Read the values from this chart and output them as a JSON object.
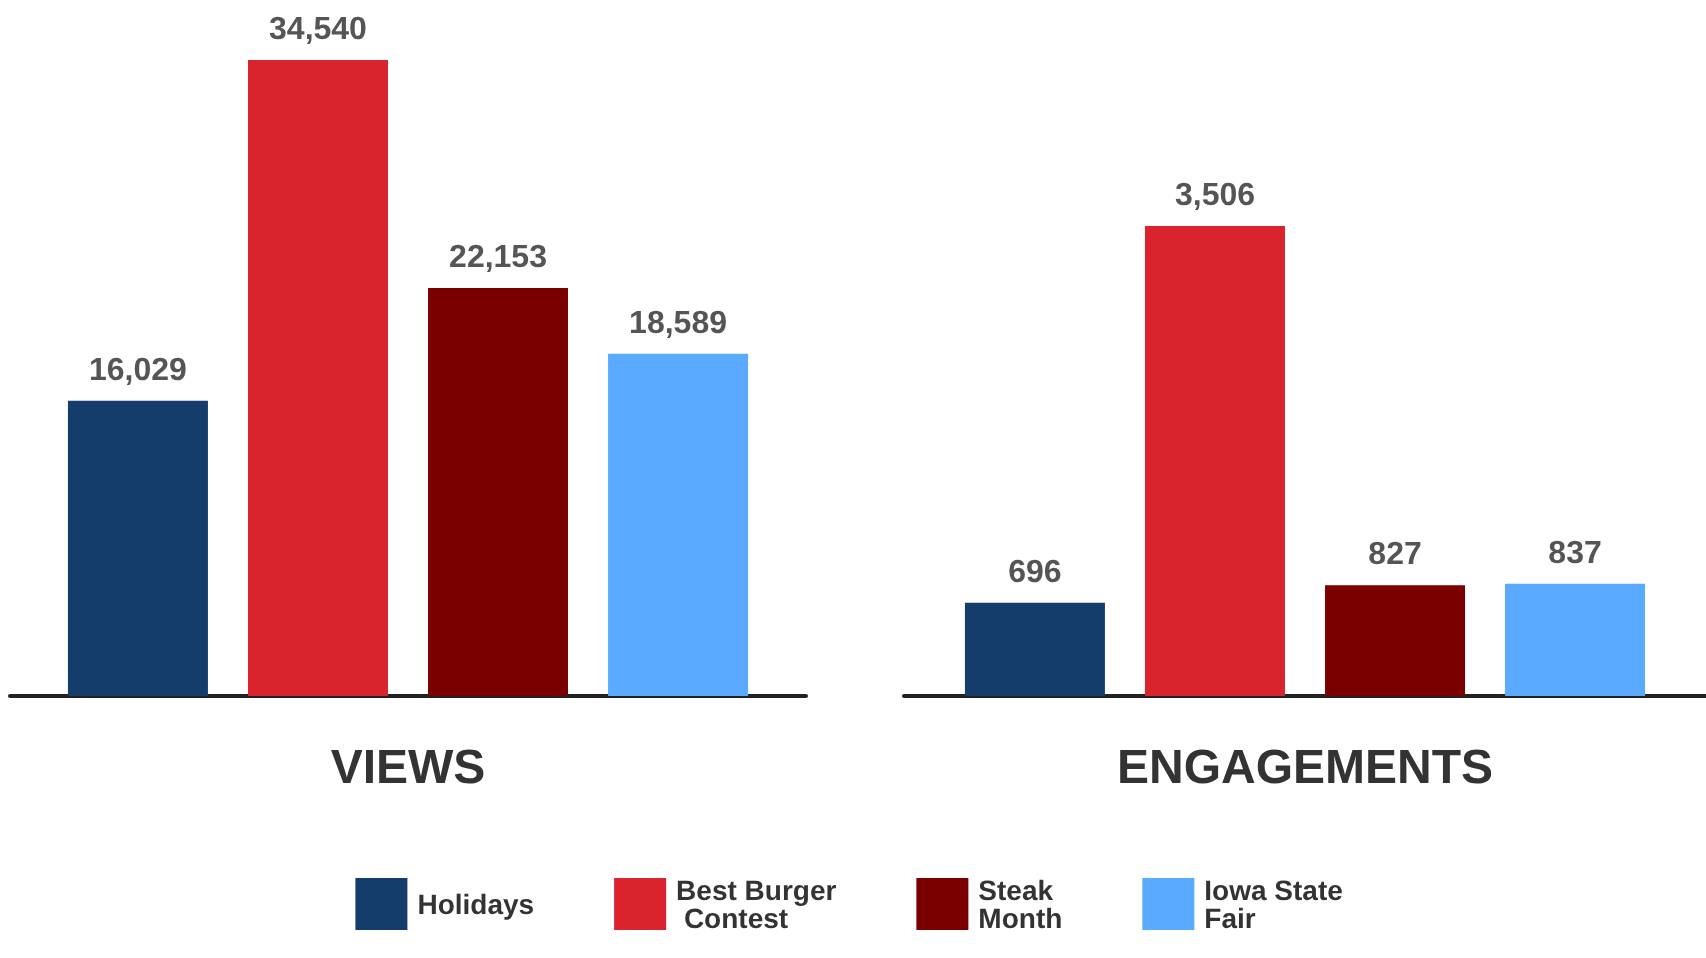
{
  "chart_data": [
    {
      "type": "bar",
      "xlabel": "VIEWS",
      "categories": [
        null
      ],
      "legend": "bottom",
      "series": [
        {
          "name": "Holidays",
          "color": "#143d6b",
          "values": [
            16029
          ],
          "value_labels": [
            "16,029"
          ]
        },
        {
          "name": "Best Burger Contest",
          "color": "#d9232d",
          "values": [
            34540
          ],
          "value_labels": [
            "34,540"
          ]
        },
        {
          "name": "Steak Month",
          "color": "#7a0000",
          "values": [
            22153
          ],
          "value_labels": [
            "22,153"
          ]
        },
        {
          "name": "Iowa State Fair",
          "color": "#5aabff",
          "values": [
            18589
          ],
          "value_labels": [
            "18,589"
          ]
        }
      ]
    },
    {
      "type": "bar",
      "xlabel": "ENGAGEMENTS",
      "categories": [
        null
      ],
      "series": [
        {
          "color": "#143d6b",
          "values": [
            696
          ],
          "value_labels": [
            "696"
          ]
        },
        {
          "color": "#d9232d",
          "values": [
            3506
          ],
          "value_labels": [
            "3,506"
          ]
        },
        {
          "color": "#7a0000",
          "values": [
            827
          ],
          "value_labels": [
            "827"
          ]
        },
        {
          "color": "#5aabff",
          "values": [
            837
          ],
          "value_labels": [
            "837"
          ]
        }
      ]
    }
  ]
}
